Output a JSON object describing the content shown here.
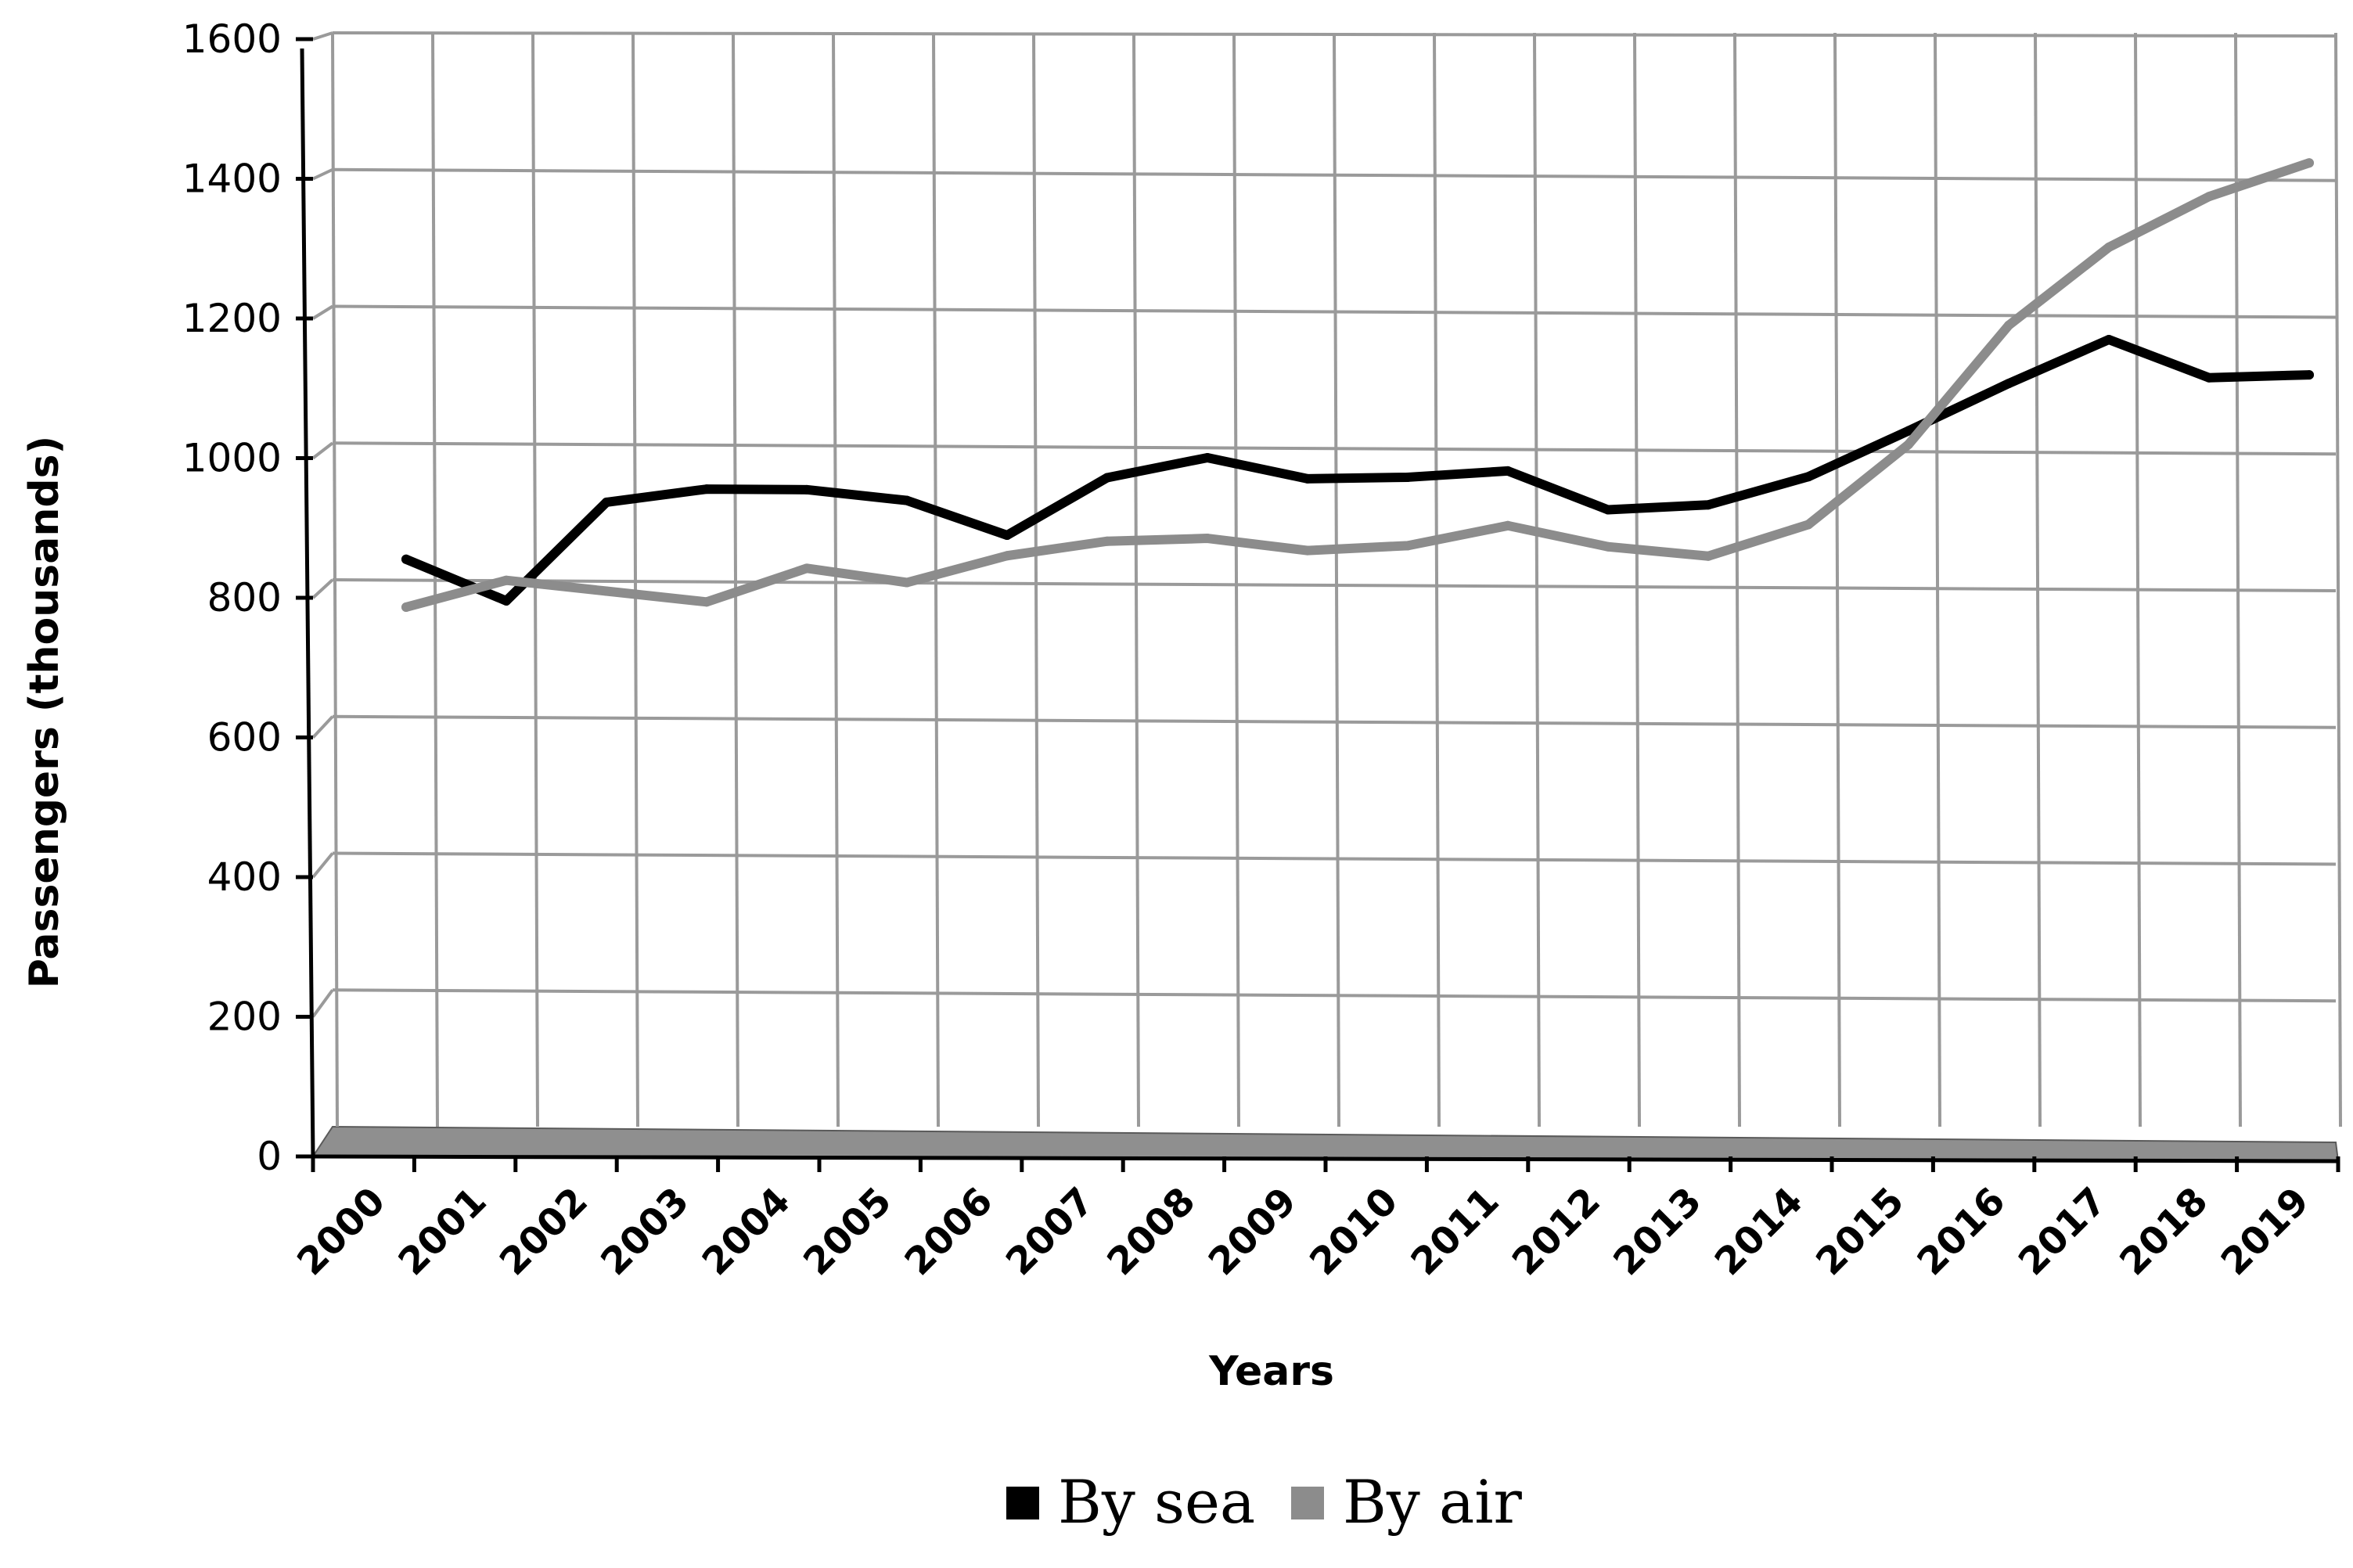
{
  "chart_data": {
    "type": "line",
    "title": "",
    "xlabel": "Years",
    "ylabel": "Passengers (thousands)",
    "ylim": [
      0,
      1600
    ],
    "yticks": [
      0,
      200,
      400,
      600,
      800,
      1000,
      1200,
      1400,
      1600
    ],
    "categories": [
      "2000",
      "2001",
      "2002",
      "2003",
      "2004",
      "2005",
      "2006",
      "2007",
      "2008",
      "2009",
      "2010",
      "2011",
      "2012",
      "2013",
      "2014",
      "2015",
      "2016",
      "2017",
      "2018",
      "2019"
    ],
    "grid": true,
    "legend_position": "bottom",
    "series": [
      {
        "name": "By sea",
        "color": "#000000",
        "values": [
          830,
          770,
          915,
          935,
          935,
          920,
          870,
          955,
          985,
          955,
          958,
          968,
          912,
          920,
          962,
          1030,
          1100,
          1165,
          1110,
          1115
        ]
      },
      {
        "name": "By air",
        "color": "#8c8c8c",
        "values": [
          760,
          800,
          785,
          770,
          820,
          800,
          840,
          862,
          867,
          850,
          858,
          888,
          858,
          845,
          892,
          1010,
          1185,
          1300,
          1375,
          1425
        ]
      }
    ]
  }
}
